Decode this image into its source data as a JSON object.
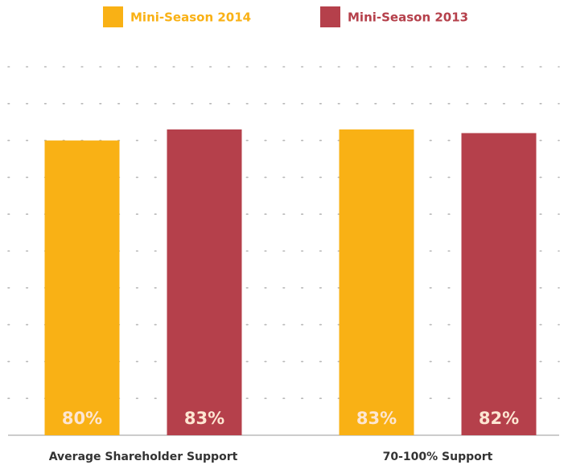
{
  "chart_data": {
    "type": "bar",
    "categories": [
      "Average Shareholder Support",
      "70-100% Support"
    ],
    "series": [
      {
        "name": "Mini-Season 2014",
        "color": "#f9b115",
        "values": [
          80,
          83
        ],
        "value_labels": [
          "80%",
          "83%"
        ]
      },
      {
        "name": "Mini-Season 2013",
        "color": "#b5404b",
        "values": [
          83,
          82
        ],
        "value_labels": [
          "83%",
          "82%"
        ]
      }
    ],
    "ylim": [
      0,
      100
    ],
    "yticks": [
      0,
      10,
      20,
      30,
      40,
      50,
      60,
      70,
      80,
      90,
      100
    ],
    "grid": true,
    "legend": "top"
  }
}
